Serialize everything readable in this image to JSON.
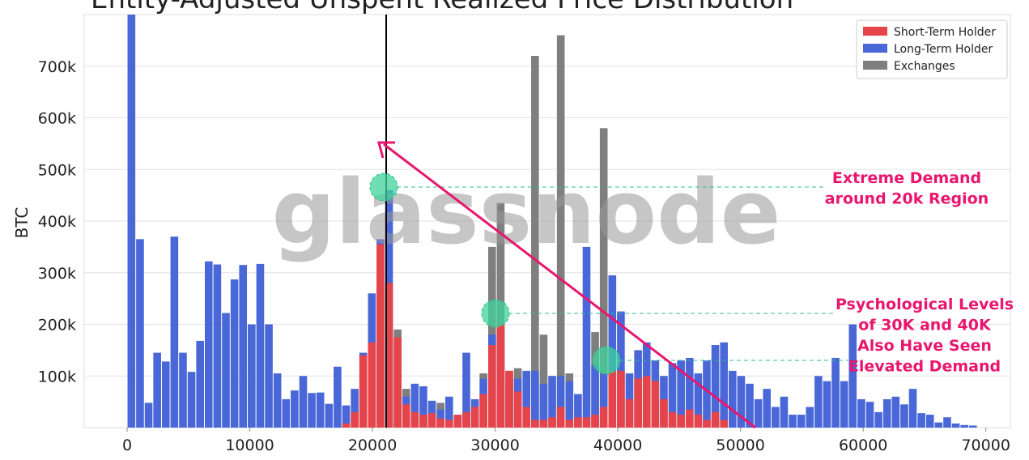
{
  "chart_data": {
    "type": "histogram",
    "title": "Entity-Adjusted Unspent Realized Price Distribution",
    "ylabel": "BTC",
    "watermark": "glassnode",
    "annotations": [
      [
        "Extreme Demand",
        "around 20k Region"
      ],
      [
        "Psychological Levels",
        "of 30K and 40K",
        "Also Have Seen",
        "Elevated Demand"
      ]
    ],
    "bins": [
      0,
      700,
      1400,
      2100,
      2800,
      3500,
      4200,
      4900,
      5600,
      6300,
      7000,
      7700,
      8400,
      9100,
      9800,
      10500,
      11200,
      11900,
      12600,
      13300,
      14000,
      14700,
      15400,
      16100,
      16800,
      17500,
      18200,
      18900,
      19600,
      20300,
      21000,
      21700,
      22400,
      23100,
      23800,
      24500,
      25200,
      25900,
      26600,
      27300,
      28000,
      28700,
      29400,
      30100,
      30800,
      31500,
      32200,
      32900,
      33600,
      34300,
      35000,
      35700,
      36400,
      37100,
      37800,
      38500,
      39200,
      39900,
      40600,
      41300,
      42000,
      42700,
      43400,
      44100,
      44800,
      45500,
      46200,
      46900,
      47600,
      48300,
      49000,
      49700,
      50400,
      51100,
      51800,
      52500,
      53200,
      53900,
      54600,
      55300,
      56000,
      56700,
      57400,
      58100,
      58800,
      59500,
      60200,
      60900,
      61600,
      62300,
      63000,
      63700,
      64400,
      65100,
      65800,
      66500,
      67200,
      67900,
      68600,
      69300
    ],
    "series": [
      {
        "name": "Exchanges",
        "color": "#7f7f7f",
        "values": [
          0,
          0,
          0,
          0,
          0,
          0,
          0,
          0,
          0,
          0,
          0,
          0,
          0,
          0,
          0,
          0,
          0,
          0,
          0,
          0,
          0,
          0,
          0,
          0,
          0,
          0,
          0,
          0,
          0,
          0,
          0,
          190000,
          75000,
          0,
          0,
          0,
          48000,
          0,
          0,
          0,
          0,
          105000,
          350000,
          435000,
          110000,
          115000,
          0,
          720000,
          180000,
          0,
          760000,
          105000,
          0,
          0,
          185000,
          580000,
          0,
          0,
          0,
          0,
          0,
          0,
          0,
          0,
          0,
          0,
          0,
          0,
          0,
          0,
          0,
          0,
          0,
          0,
          0,
          0,
          0,
          0,
          0,
          0,
          0,
          0,
          0,
          0,
          0,
          0,
          0,
          0,
          0,
          0,
          0,
          0,
          0,
          0,
          0,
          0,
          0,
          0,
          0
        ]
      },
      {
        "name": "Long-Term Holder",
        "color": "#4a67d8",
        "values": [
          800000,
          365000,
          48000,
          145000,
          128000,
          370000,
          145000,
          108000,
          168000,
          322000,
          316000,
          222000,
          287000,
          315000,
          200000,
          317000,
          200000,
          105000,
          55000,
          72000,
          100000,
          67000,
          68000,
          46000,
          118000,
          43000,
          75000,
          145000,
          260000,
          365000,
          460000,
          170000,
          60000,
          85000,
          80000,
          52000,
          35000,
          60000,
          20000,
          145000,
          55000,
          95000,
          180000,
          190000,
          95000,
          95000,
          110000,
          110000,
          85000,
          100000,
          100000,
          90000,
          65000,
          350000,
          120000,
          105000,
          295000,
          225000,
          105000,
          150000,
          165000,
          130000,
          100000,
          125000,
          130000,
          135000,
          105000,
          130000,
          160000,
          165000,
          110000,
          100000,
          85000,
          55000,
          75000,
          40000,
          60000,
          25000,
          25000,
          40000,
          100000,
          90000,
          135000,
          90000,
          200000,
          55000,
          50000,
          30000,
          55000,
          60000,
          45000,
          75000,
          28000,
          25000,
          10000,
          20000,
          8000,
          5000,
          4000
        ]
      },
      {
        "name": "Short-Term Holder",
        "color": "#e5454a",
        "values": [
          0,
          0,
          0,
          0,
          0,
          0,
          0,
          0,
          0,
          0,
          0,
          0,
          0,
          0,
          0,
          0,
          0,
          0,
          0,
          0,
          0,
          0,
          0,
          0,
          0,
          8000,
          30000,
          140000,
          165000,
          355000,
          280000,
          175000,
          45000,
          30000,
          25000,
          28000,
          18000,
          15000,
          25000,
          30000,
          40000,
          65000,
          160000,
          200000,
          110000,
          70000,
          40000,
          15000,
          15000,
          20000,
          40000,
          15000,
          20000,
          20000,
          25000,
          40000,
          110000,
          110000,
          55000,
          95000,
          100000,
          90000,
          55000,
          30000,
          25000,
          35000,
          25000,
          15000,
          30000,
          15000,
          0,
          0,
          0,
          0,
          0,
          0,
          0,
          0,
          0,
          0,
          0,
          0,
          0,
          0,
          0,
          0,
          0,
          0,
          0,
          0,
          0,
          0,
          0,
          0,
          0,
          0,
          0,
          0,
          0
        ]
      }
    ],
    "legend_order": [
      2,
      1,
      0
    ],
    "legend": "upper right",
    "xlim": [
      -3500,
      72000
    ],
    "ylim": [
      0,
      800000
    ],
    "xticks": [
      0,
      10000,
      20000,
      30000,
      40000,
      50000,
      60000,
      70000
    ],
    "yticks": [
      {
        "value": 100000,
        "label": "100k"
      },
      {
        "value": 200000,
        "label": "200k"
      },
      {
        "value": 300000,
        "label": "300k"
      },
      {
        "value": 400000,
        "label": "400k"
      },
      {
        "value": 500000,
        "label": "500k"
      },
      {
        "value": 600000,
        "label": "600k"
      },
      {
        "value": 700000,
        "label": "700k"
      }
    ],
    "grid": true
  }
}
